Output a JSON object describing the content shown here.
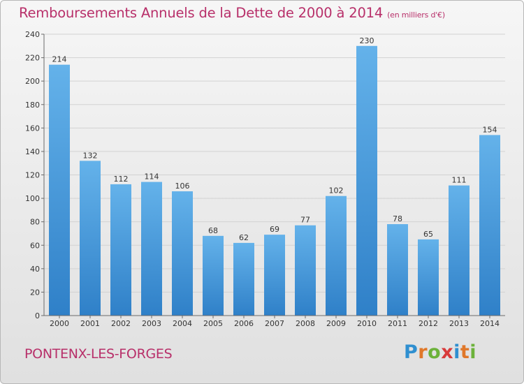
{
  "title": "Remboursements Annuels de la Dette de 2000 à 2014",
  "subtitle": "(en milliers d'€)",
  "commune": "PONTENX-LES-FORGES",
  "brand": {
    "letters": [
      "P",
      "r",
      "o",
      "x",
      "i",
      "t",
      "i"
    ],
    "colors": [
      "#2f8fd0",
      "#e0782a",
      "#6cb23a",
      "#d83a3a",
      "#2f8fd0",
      "#e0782a",
      "#6cb23a"
    ]
  },
  "colors": {
    "bar_light": "#64b2ea",
    "bar_dark": "#2f80c8",
    "title": "#b8306a",
    "grid": "#d2d2d2",
    "axis": "#6a6a6a",
    "text": "#333333"
  },
  "chart_data": {
    "type": "bar",
    "categories": [
      "2000",
      "2001",
      "2002",
      "2003",
      "2004",
      "2005",
      "2006",
      "2007",
      "2008",
      "2009",
      "2010",
      "2011",
      "2012",
      "2013",
      "2014"
    ],
    "values": [
      214,
      132,
      112,
      114,
      106,
      68,
      62,
      69,
      77,
      102,
      230,
      78,
      65,
      111,
      154
    ],
    "value_labels": [
      "214",
      "132",
      "112",
      "114",
      "106",
      "68",
      "62",
      "69",
      "77",
      "102",
      "230",
      "78",
      "65",
      "111",
      "154"
    ],
    "y_ticks": [
      0,
      20,
      40,
      60,
      80,
      100,
      120,
      140,
      160,
      180,
      200,
      220,
      240
    ],
    "ylim": [
      0,
      240
    ],
    "grid": true,
    "legend": "none"
  }
}
